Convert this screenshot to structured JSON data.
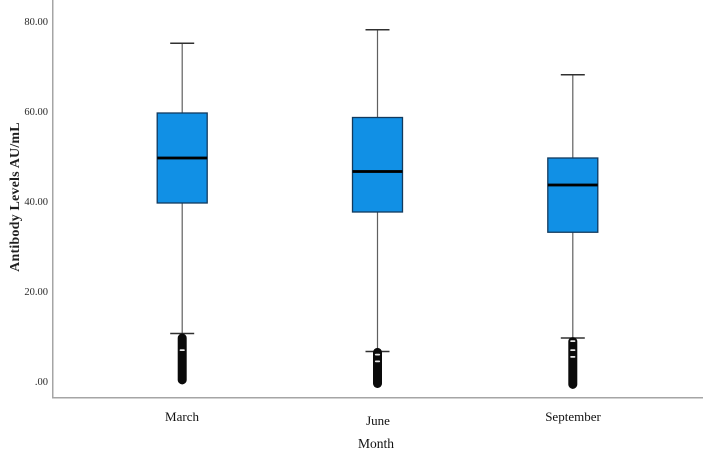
{
  "chart_data": {
    "type": "boxplot",
    "title": "",
    "xlabel": "Month",
    "ylabel": "Antibody Levels AU/mL",
    "categories": [
      "March",
      "June",
      "September"
    ],
    "yticks": {
      "labels": [
        ".00",
        "20.00",
        "40.00",
        "60.00",
        "80.00"
      ],
      "values": [
        0,
        20,
        40,
        60,
        80
      ]
    },
    "ylim": [
      -3.3,
      85
    ],
    "grid": false,
    "legend": "none",
    "series": [
      {
        "label": "March",
        "whisker_high": 75.5,
        "q3": 60,
        "median": 50,
        "q1": 40,
        "whisker_low": 11,
        "outlier_stack": {
          "max": 11,
          "min": -0.3
        },
        "open_outliers": [
          7.3
        ]
      },
      {
        "label": "June",
        "whisker_high": 78.5,
        "q3": 59,
        "median": 47,
        "q1": 38,
        "whisker_low": 7,
        "outlier_stack": {
          "max": 7.8,
          "min": -1.1
        },
        "open_outliers": [
          6.3,
          4.8
        ]
      },
      {
        "label": "September",
        "whisker_high": 68.5,
        "q3": 50,
        "median": 44,
        "q1": 33.5,
        "whisker_low": 10,
        "outlier_stack": {
          "max": 10.2,
          "min": -1.3
        },
        "open_outliers": [
          9.3,
          7.3,
          5.8
        ]
      }
    ],
    "colors": {
      "box_fill": "#1190E5",
      "box_border": "#123A5E",
      "median": "#000000",
      "whisker": "#5f5f5f",
      "whisker_cap": "#303030",
      "outlier": "#0a0a0a",
      "axis": "#a5a5a5",
      "text": "#1f1f1f"
    }
  }
}
